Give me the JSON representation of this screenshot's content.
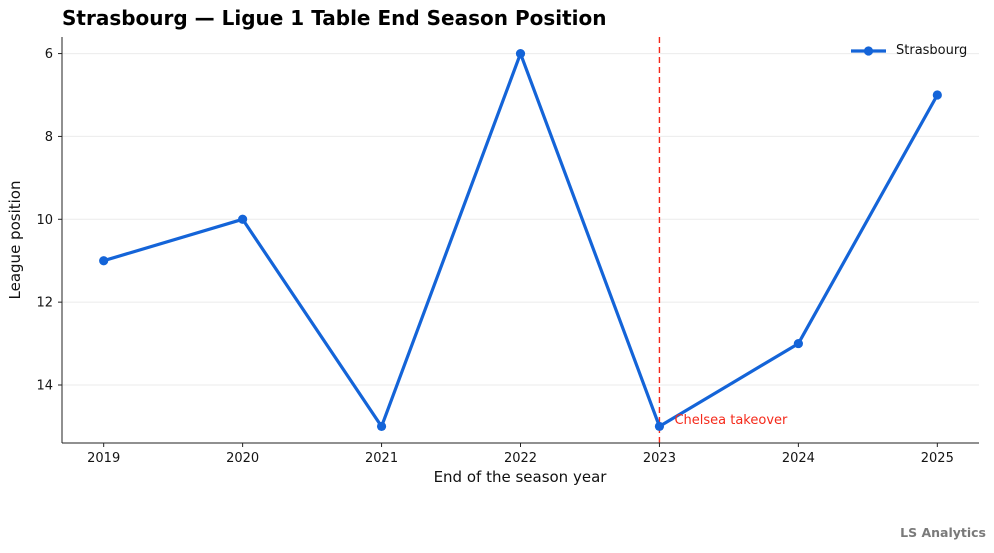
{
  "footer": {
    "watermark": "LS Analytics"
  },
  "chart_data": {
    "type": "line",
    "title": "Strasbourg — Ligue 1 Table End Season Position",
    "xlabel": "End of the season year",
    "ylabel": "League position",
    "x": [
      2019,
      2020,
      2021,
      2022,
      2023,
      2024,
      2025
    ],
    "series": [
      {
        "name": "Strasbourg",
        "values": [
          11,
          10,
          15,
          6,
          15,
          13,
          7
        ],
        "color": "#1464d8"
      }
    ],
    "xticklabels": [
      "2019",
      "2020",
      "2021",
      "2022",
      "2023",
      "2024",
      "2025"
    ],
    "yticks": [
      6,
      8,
      10,
      12,
      14
    ],
    "xlim": [
      2018.7,
      2025.3
    ],
    "ylim": [
      5.6,
      15.4
    ],
    "y_axis_inverted": true,
    "grid": "horizontal",
    "grid_color": "#ebebeb",
    "axis_color": "#222222",
    "legend_position": "upper-right",
    "vline": {
      "x": 2023,
      "color": "#f5291a",
      "style": "dashed"
    },
    "annotation": {
      "text": "Chelsea takeover",
      "x": 2023,
      "y": 15,
      "color": "#f5291a"
    }
  }
}
